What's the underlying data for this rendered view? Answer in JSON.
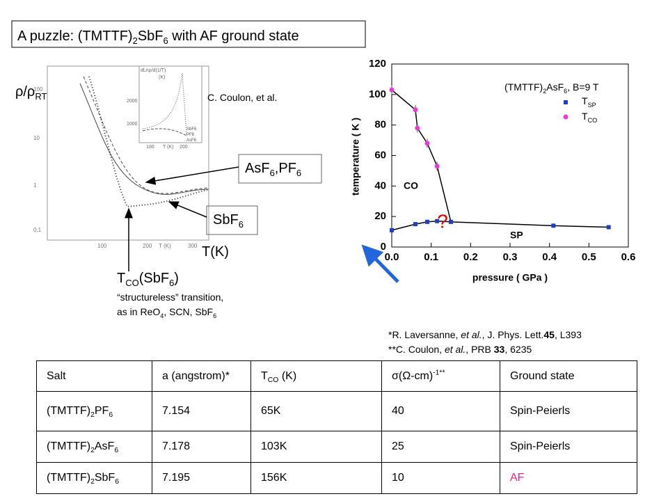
{
  "title": [
    "A puzzle: (TMTTF)",
    {
      "sub": "2"
    },
    "SbF",
    {
      "sub": "6"
    },
    " with AF ground state"
  ],
  "left_figure": {
    "y_label": [
      "ρ/ρ",
      {
        "sub": "RT"
      }
    ],
    "credit": "C. Coulon, et al.",
    "y_tick_labels": [
      "100",
      "10",
      "1",
      "0,1"
    ],
    "x_tick_labels": [
      "100",
      "200",
      "300"
    ],
    "x_axis_small": "T (K)",
    "x_label": "T(K)",
    "callout_1": [
      "AsF",
      {
        "sub": "6"
      },
      ",PF",
      {
        "sub": "6"
      }
    ],
    "callout_2": [
      "SbF",
      {
        "sub": "6"
      }
    ],
    "inset": {
      "y_label": "dLnρ/d(1/T)",
      "unit": "(K)",
      "y_tick_labels": [
        "2000",
        "1000"
      ],
      "x_tick_labels": [
        "100",
        "200"
      ],
      "x_label": "T (K)",
      "curve_labels": [
        "SbF6",
        "PF6",
        "AsF6"
      ]
    },
    "note_title": [
      "T",
      {
        "sub": "CO"
      },
      "(SbF",
      {
        "sub": "6"
      },
      ")"
    ],
    "note_lines": [
      [
        "“structureless” transition,"
      ],
      [
        "as in ReO",
        {
          "sub": "4"
        },
        ", SCN, SbF",
        {
          "sub": "6"
        }
      ]
    ]
  },
  "chart": {
    "type": "scatter",
    "x_label": "pressure ( GPa )",
    "y_label": "temperature ( K )",
    "legend_title": [
      "(TMTTF)",
      {
        "sub": "2"
      },
      "AsF",
      {
        "sub": "6"
      },
      ", B=9 T"
    ],
    "xlim": [
      0,
      0.6
    ],
    "xticks": [
      {
        "value": 0,
        "label": "0.0"
      },
      {
        "value": 0.1,
        "label": "0.1"
      },
      {
        "value": 0.2,
        "label": "0.2"
      },
      {
        "value": 0.3,
        "label": "0.3"
      },
      {
        "value": 0.4,
        "label": "0.4"
      },
      {
        "value": 0.5,
        "label": "0.5"
      },
      {
        "value": 0.6,
        "label": "0.6"
      }
    ],
    "ylim": [
      0,
      120
    ],
    "yticks": [
      0,
      20,
      40,
      60,
      80,
      100,
      120
    ],
    "series": [
      {
        "name": [
          "T",
          {
            "sub": "SP"
          }
        ],
        "color": "#1f3fbf",
        "marker": "square",
        "x": [
          0.0,
          0.06,
          0.09,
          0.115,
          0.15,
          0.41,
          0.55
        ],
        "values": [
          11,
          15,
          16.5,
          17,
          16.5,
          14,
          13
        ]
      },
      {
        "name": [
          "T",
          {
            "sub": "CO"
          }
        ],
        "color": "#e83ad8",
        "marker": "circle",
        "x": [
          0.0,
          0.06,
          0.065,
          0.09,
          0.115
        ],
        "values": [
          103,
          90,
          78,
          68,
          53
        ],
        "errors": [
          3,
          3,
          3,
          3,
          3
        ]
      }
    ],
    "region_labels": [
      "CO",
      "SP"
    ],
    "question": "?"
  },
  "references": [
    [
      "*R. Laversanne, ",
      {
        "i": "et al."
      },
      ", J. Phys. Lett.",
      {
        "b": "45"
      },
      ", L393"
    ],
    [
      "**C. Coulon, ",
      {
        "i": "et al."
      },
      ", PRB ",
      {
        "b": "33"
      },
      ", 6235"
    ]
  ],
  "table": {
    "header": [
      [
        "Salt"
      ],
      [
        "a (angstrom)*"
      ],
      [
        "T",
        {
          "sub": "CO"
        },
        " (K)"
      ],
      [
        "σ(Ω-cm)",
        {
          "sup": "-1**"
        }
      ],
      [
        "Ground state"
      ]
    ],
    "rows": [
      [
        [
          "(TMTTF)",
          {
            "sub": "2"
          },
          "PF",
          {
            "sub": "6"
          }
        ],
        [
          "7.154"
        ],
        [
          "65K"
        ],
        [
          "40"
        ],
        [
          "Spin-Peierls"
        ]
      ],
      [
        [
          "(TMTTF)",
          {
            "sub": "2"
          },
          "AsF",
          {
            "sub": "6"
          }
        ],
        [
          "7.178"
        ],
        [
          "103K"
        ],
        [
          "25"
        ],
        [
          "Spin-Peierls"
        ]
      ],
      [
        [
          "(TMTTF)",
          {
            "sub": "2"
          },
          "SbF",
          {
            "sub": "6"
          }
        ],
        [
          "7.195"
        ],
        [
          "156K"
        ],
        [
          "10"
        ],
        [
          "AF"
        ]
      ]
    ],
    "emphasis": {
      "row": 2,
      "column": 4,
      "color": "#ee1c8c"
    }
  }
}
